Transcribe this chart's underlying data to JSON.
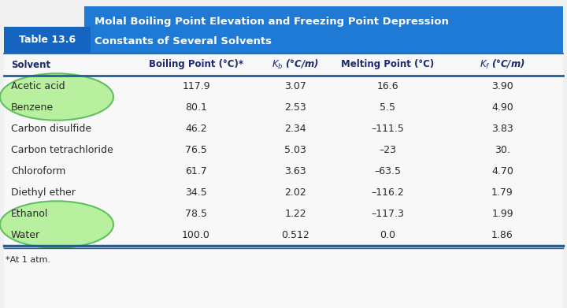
{
  "title_line1": "Molal Boiling Point Elevation and Freezing Point Depression",
  "title_line2": "Constants of Several Solvents",
  "table_label": "Table 13.6",
  "rows": [
    [
      "Acetic acid",
      "117.9",
      "3.07",
      "16.6",
      "3.90"
    ],
    [
      "Benzene",
      "80.1",
      "2.53",
      "5.5",
      "4.90"
    ],
    [
      "Carbon disulfide",
      "46.2",
      "2.34",
      "–111.5",
      "3.83"
    ],
    [
      "Carbon tetrachloride",
      "76.5",
      "5.03",
      "–23",
      "30."
    ],
    [
      "Chloroform",
      "61.7",
      "3.63",
      "–63.5",
      "4.70"
    ],
    [
      "Diethyl ether",
      "34.5",
      "2.02",
      "–116.2",
      "1.79"
    ],
    [
      "Ethanol",
      "78.5",
      "1.22",
      "–117.3",
      "1.99"
    ],
    [
      "Water",
      "100.0",
      "0.512",
      "0.0",
      "1.86"
    ]
  ],
  "footnote": "*At 1 atm.",
  "highlight_color": "#b8f0a0",
  "highlight_edge_color": "#60c060",
  "dark_blue": "#1565c0",
  "bright_blue": "#1e7ad4",
  "title_color": "#ffffff",
  "label_color": "#ffffff",
  "header_col_color": "#1a2a6c",
  "body_text_color": "#2a2a2a",
  "bg_color": "#f5f5f5",
  "outer_bg": "#f0f0f0",
  "divider_color": "#1e5fa0",
  "figsize": [
    7.2,
    3.91
  ],
  "dpi": 100
}
